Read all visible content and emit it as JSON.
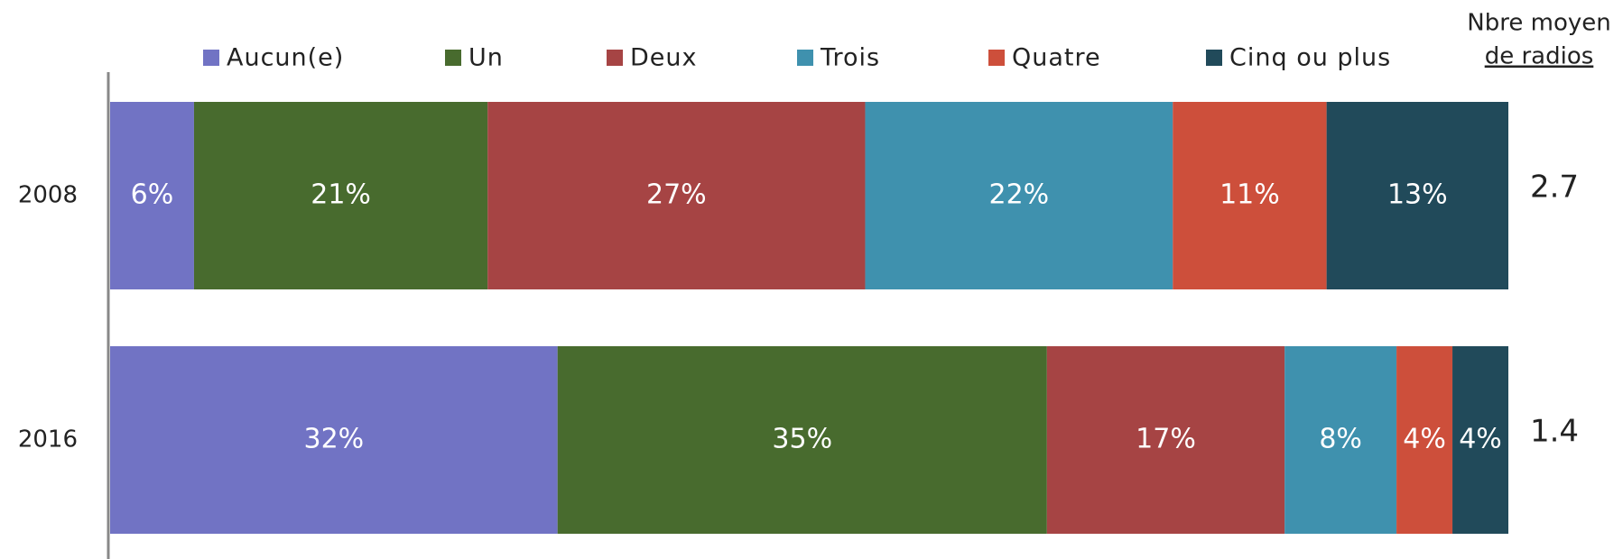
{
  "chart_data": {
    "type": "stacked_barh",
    "categories": [
      "2008",
      "2016"
    ],
    "xlim": [
      0,
      100
    ],
    "series": [
      {
        "name": "Aucun(e)",
        "color": "#7173c4",
        "values": [
          6,
          32
        ],
        "value_labels": [
          "6%",
          "32%"
        ]
      },
      {
        "name": "Un",
        "color": "#486b2e",
        "values": [
          21,
          35
        ],
        "value_labels": [
          "21%",
          "35%"
        ]
      },
      {
        "name": "Deux",
        "color": "#a64444",
        "values": [
          27,
          17
        ],
        "value_labels": [
          "27%",
          "17%"
        ]
      },
      {
        "name": "Trois",
        "color": "#3f91ae",
        "values": [
          22,
          8
        ],
        "value_labels": [
          "22%",
          "8%"
        ]
      },
      {
        "name": "Quatre",
        "color": "#cd4f3b",
        "values": [
          11,
          4
        ],
        "value_labels": [
          "11%",
          "4%"
        ]
      },
      {
        "name": "Cinq ou plus",
        "color": "#214a5a",
        "values": [
          13,
          4
        ],
        "value_labels": [
          "13%",
          "4%"
        ]
      }
    ],
    "side_title": [
      "Nbre moyen",
      "de radios"
    ],
    "side_values": [
      2.7,
      1.4
    ],
    "legend": "top"
  }
}
